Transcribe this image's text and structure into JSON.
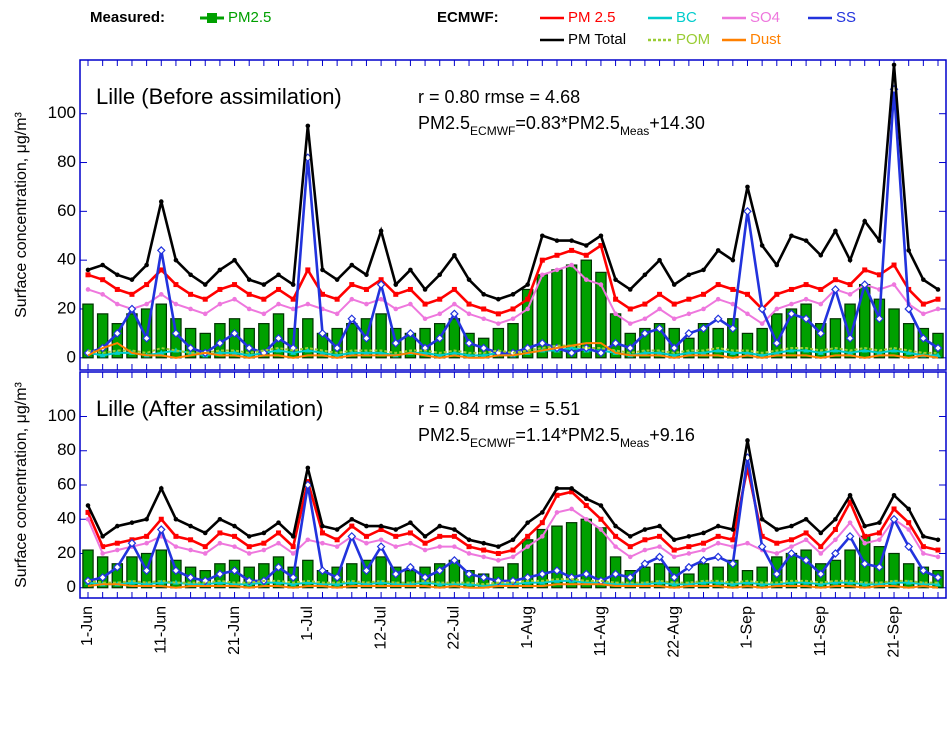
{
  "chart_data": [
    {
      "type": "line",
      "title": "Lille (Before assimilation)",
      "stats": "r = 0.80   rmse = 4.68",
      "equation": [
        "PM2.5",
        "ECMWF",
        "=0.83*PM2.5",
        "Meas",
        "+14.30"
      ],
      "y_label": "Surface concentration, μg/m³",
      "legend_titles": [
        "Measured:",
        "ECMWF:"
      ],
      "ylim": [
        -5,
        122
      ],
      "yticks": [
        0,
        20,
        40,
        60,
        80,
        100
      ],
      "series": [
        {
          "name": "PM2.5",
          "type": "bar",
          "group": 0,
          "color": "#00a000",
          "values": [
            22,
            18,
            14,
            18,
            20,
            22,
            16,
            12,
            10,
            14,
            16,
            12,
            14,
            18,
            12,
            16,
            10,
            12,
            14,
            16,
            18,
            12,
            10,
            12,
            14,
            16,
            10,
            8,
            12,
            14,
            28,
            34,
            36,
            38,
            40,
            35,
            18,
            10,
            12,
            14,
            12,
            8,
            14,
            12,
            16,
            10,
            12,
            18,
            20,
            22,
            14,
            16,
            22,
            30,
            24,
            20,
            14,
            12,
            10
          ]
        },
        {
          "name": "PM 2.5",
          "type": "line",
          "group": 1,
          "marker": "square",
          "color": "#ff0000",
          "values": [
            34,
            32,
            28,
            26,
            30,
            36,
            30,
            26,
            24,
            28,
            30,
            26,
            24,
            28,
            24,
            36,
            26,
            24,
            30,
            28,
            32,
            26,
            28,
            22,
            24,
            28,
            22,
            20,
            18,
            20,
            24,
            40,
            42,
            44,
            42,
            46,
            24,
            20,
            22,
            26,
            22,
            24,
            26,
            30,
            28,
            26,
            20,
            26,
            28,
            30,
            28,
            32,
            30,
            36,
            34,
            38,
            28,
            22,
            24
          ]
        },
        {
          "name": "BC",
          "type": "line",
          "group": 1,
          "marker": "triangle",
          "color": "#00cccc",
          "values": [
            2,
            1,
            2,
            2,
            1,
            2,
            3,
            2,
            1,
            2,
            2,
            1,
            2,
            3,
            2,
            3,
            2,
            1,
            2,
            2,
            2,
            1,
            2,
            2,
            1,
            2,
            1,
            1,
            2,
            1,
            2,
            3,
            3,
            4,
            3,
            3,
            2,
            1,
            2,
            2,
            1,
            2,
            2,
            3,
            2,
            2,
            1,
            2,
            3,
            3,
            2,
            3,
            2,
            3,
            2,
            3,
            2,
            1,
            1
          ]
        },
        {
          "name": "SO4",
          "type": "line",
          "group": 1,
          "marker": "dot",
          "color": "#ee77dd",
          "values": [
            28,
            26,
            22,
            20,
            22,
            26,
            22,
            20,
            18,
            22,
            24,
            20,
            18,
            22,
            20,
            22,
            20,
            18,
            24,
            22,
            24,
            20,
            22,
            16,
            18,
            22,
            18,
            16,
            14,
            16,
            20,
            34,
            36,
            38,
            32,
            30,
            18,
            14,
            16,
            20,
            16,
            18,
            20,
            24,
            22,
            18,
            14,
            20,
            22,
            24,
            22,
            28,
            26,
            30,
            28,
            30,
            22,
            18,
            20
          ]
        },
        {
          "name": "SS",
          "type": "line",
          "group": 1,
          "marker": "diamond",
          "color": "#2233dd",
          "values": [
            2,
            4,
            10,
            20,
            8,
            44,
            10,
            4,
            2,
            6,
            10,
            4,
            2,
            8,
            4,
            82,
            10,
            4,
            16,
            8,
            30,
            6,
            10,
            4,
            8,
            18,
            6,
            4,
            2,
            2,
            4,
            6,
            4,
            2,
            4,
            2,
            6,
            4,
            10,
            12,
            4,
            10,
            12,
            16,
            12,
            60,
            20,
            6,
            18,
            16,
            10,
            28,
            8,
            30,
            16,
            110,
            20,
            8,
            4
          ]
        },
        {
          "name": "PM Total",
          "type": "line",
          "group": 1,
          "marker": "dot",
          "color": "#000000",
          "values": [
            36,
            38,
            34,
            32,
            38,
            64,
            40,
            34,
            30,
            36,
            40,
            32,
            30,
            34,
            30,
            95,
            36,
            32,
            38,
            34,
            52,
            30,
            36,
            28,
            34,
            42,
            32,
            26,
            24,
            26,
            30,
            50,
            48,
            48,
            46,
            50,
            32,
            28,
            34,
            40,
            30,
            34,
            36,
            44,
            40,
            70,
            46,
            38,
            50,
            48,
            42,
            52,
            40,
            56,
            48,
            120,
            44,
            32,
            28
          ]
        },
        {
          "name": "POM",
          "type": "line",
          "group": 1,
          "dashed": true,
          "color": "#99cc33",
          "values": [
            3,
            2,
            3,
            3,
            2,
            4,
            3,
            2,
            2,
            3,
            3,
            2,
            3,
            4,
            3,
            4,
            3,
            2,
            3,
            3,
            3,
            2,
            3,
            3,
            2,
            3,
            2,
            2,
            3,
            2,
            3,
            4,
            5,
            5,
            4,
            4,
            3,
            2,
            3,
            3,
            2,
            3,
            3,
            4,
            3,
            3,
            2,
            3,
            4,
            4,
            3,
            4,
            3,
            4,
            3,
            4,
            3,
            2,
            2
          ]
        },
        {
          "name": "Dust",
          "type": "line",
          "group": 1,
          "color": "#ff8000",
          "values": [
            1,
            4,
            6,
            2,
            1,
            1,
            0,
            1,
            2,
            1,
            1,
            0,
            1,
            1,
            0,
            1,
            1,
            0,
            1,
            1,
            1,
            1,
            2,
            1,
            0,
            1,
            0,
            0,
            1,
            1,
            2,
            3,
            4,
            5,
            6,
            6,
            2,
            1,
            1,
            1,
            0,
            1,
            1,
            1,
            0,
            1,
            0,
            1,
            1,
            1,
            0,
            1,
            1,
            0,
            1,
            1,
            0,
            1,
            0
          ]
        }
      ]
    },
    {
      "type": "line",
      "title": "Lille (After assimilation)",
      "stats": "r = 0.84   rmse = 5.51",
      "equation": [
        "PM2.5",
        "ECMWF",
        "=1.14*PM2.5",
        "Meas",
        "+9.16"
      ],
      "y_label": "Surface concentration, μg/m³",
      "ylim": [
        -6,
        126
      ],
      "yticks": [
        0,
        20,
        40,
        60,
        80,
        100
      ],
      "categories": [
        "1-Jun",
        null,
        null,
        null,
        null,
        "11-Jun",
        null,
        null,
        null,
        null,
        "21-Jun",
        null,
        null,
        null,
        null,
        "1-Jul",
        null,
        null,
        null,
        null,
        "12-Jul",
        null,
        null,
        null,
        null,
        "22-Jul",
        null,
        null,
        null,
        null,
        "1-Aug",
        null,
        null,
        null,
        null,
        "11-Aug",
        null,
        null,
        null,
        null,
        "22-Aug",
        null,
        null,
        null,
        null,
        "1-Sep",
        null,
        null,
        null,
        null,
        "11-Sep",
        null,
        null,
        null,
        null,
        "21-Sep",
        null,
        null,
        null
      ],
      "series": [
        {
          "type": "bar",
          "color": "#00a000",
          "values": [
            22,
            18,
            14,
            18,
            20,
            22,
            16,
            12,
            10,
            14,
            16,
            12,
            14,
            18,
            12,
            16,
            10,
            12,
            14,
            16,
            18,
            12,
            10,
            12,
            14,
            16,
            10,
            8,
            12,
            14,
            28,
            34,
            36,
            38,
            40,
            35,
            18,
            10,
            12,
            14,
            12,
            8,
            14,
            12,
            16,
            10,
            12,
            18,
            20,
            22,
            14,
            16,
            22,
            30,
            24,
            20,
            14,
            12,
            10
          ]
        },
        {
          "type": "line",
          "marker": "square",
          "color": "#ff0000",
          "values": [
            44,
            24,
            26,
            28,
            30,
            40,
            30,
            28,
            24,
            32,
            30,
            24,
            26,
            32,
            24,
            62,
            32,
            28,
            36,
            30,
            34,
            30,
            32,
            26,
            30,
            30,
            24,
            22,
            20,
            22,
            30,
            38,
            54,
            56,
            48,
            40,
            30,
            24,
            28,
            30,
            22,
            24,
            26,
            30,
            28,
            70,
            30,
            26,
            28,
            32,
            24,
            34,
            50,
            30,
            32,
            46,
            38,
            24,
            22
          ]
        },
        {
          "type": "line",
          "marker": "triangle",
          "color": "#00cccc",
          "values": [
            3,
            2,
            2,
            3,
            2,
            3,
            3,
            2,
            2,
            3,
            2,
            2,
            3,
            3,
            2,
            3,
            2,
            2,
            3,
            2,
            3,
            2,
            2,
            3,
            2,
            2,
            2,
            1,
            2,
            2,
            3,
            3,
            4,
            4,
            3,
            3,
            2,
            2,
            2,
            3,
            2,
            2,
            3,
            3,
            2,
            3,
            2,
            2,
            3,
            3,
            2,
            3,
            3,
            2,
            2,
            3,
            3,
            2,
            2
          ]
        },
        {
          "type": "line",
          "marker": "dot",
          "color": "#ee77dd",
          "values": [
            40,
            20,
            22,
            24,
            26,
            30,
            24,
            22,
            20,
            26,
            24,
            20,
            22,
            26,
            20,
            28,
            26,
            24,
            30,
            26,
            28,
            24,
            26,
            22,
            24,
            24,
            20,
            18,
            16,
            18,
            24,
            30,
            44,
            46,
            40,
            34,
            24,
            18,
            22,
            24,
            18,
            20,
            22,
            26,
            24,
            26,
            22,
            20,
            24,
            28,
            20,
            28,
            38,
            26,
            28,
            40,
            34,
            20,
            18
          ]
        },
        {
          "type": "line",
          "marker": "diamond",
          "color": "#2233dd",
          "values": [
            4,
            6,
            12,
            26,
            10,
            34,
            10,
            6,
            4,
            8,
            10,
            4,
            4,
            12,
            6,
            60,
            10,
            6,
            30,
            10,
            24,
            8,
            12,
            6,
            10,
            16,
            8,
            6,
            4,
            4,
            6,
            8,
            10,
            6,
            8,
            4,
            8,
            6,
            14,
            18,
            6,
            12,
            16,
            18,
            14,
            76,
            24,
            8,
            20,
            16,
            8,
            20,
            30,
            14,
            12,
            40,
            24,
            10,
            6
          ]
        },
        {
          "type": "line",
          "marker": "dot",
          "color": "#000000",
          "values": [
            48,
            30,
            36,
            38,
            40,
            58,
            40,
            36,
            32,
            40,
            36,
            30,
            32,
            38,
            30,
            70,
            36,
            34,
            40,
            36,
            36,
            34,
            38,
            30,
            36,
            34,
            28,
            26,
            24,
            28,
            38,
            44,
            58,
            58,
            52,
            48,
            36,
            30,
            34,
            36,
            28,
            30,
            32,
            36,
            34,
            86,
            40,
            34,
            36,
            40,
            32,
            40,
            54,
            36,
            38,
            54,
            46,
            30,
            28
          ]
        },
        {
          "type": "line",
          "dashed": true,
          "color": "#99cc33",
          "values": [
            4,
            3,
            3,
            4,
            3,
            4,
            3,
            3,
            3,
            4,
            3,
            3,
            4,
            4,
            3,
            4,
            3,
            3,
            4,
            3,
            4,
            3,
            3,
            4,
            3,
            3,
            3,
            2,
            3,
            3,
            4,
            4,
            5,
            5,
            4,
            4,
            3,
            3,
            3,
            4,
            3,
            3,
            4,
            4,
            3,
            4,
            3,
            3,
            4,
            4,
            3,
            4,
            4,
            3,
            3,
            4,
            4,
            3,
            3
          ]
        },
        {
          "type": "line",
          "color": "#ff8000",
          "values": [
            1,
            2,
            2,
            1,
            1,
            1,
            0,
            1,
            1,
            1,
            1,
            0,
            1,
            1,
            0,
            1,
            1,
            0,
            1,
            1,
            1,
            1,
            1,
            1,
            0,
            1,
            0,
            0,
            1,
            1,
            1,
            1,
            2,
            2,
            2,
            2,
            1,
            1,
            1,
            1,
            0,
            1,
            1,
            1,
            0,
            1,
            0,
            1,
            1,
            1,
            0,
            1,
            1,
            0,
            1,
            1,
            0,
            1,
            0
          ]
        }
      ]
    }
  ]
}
